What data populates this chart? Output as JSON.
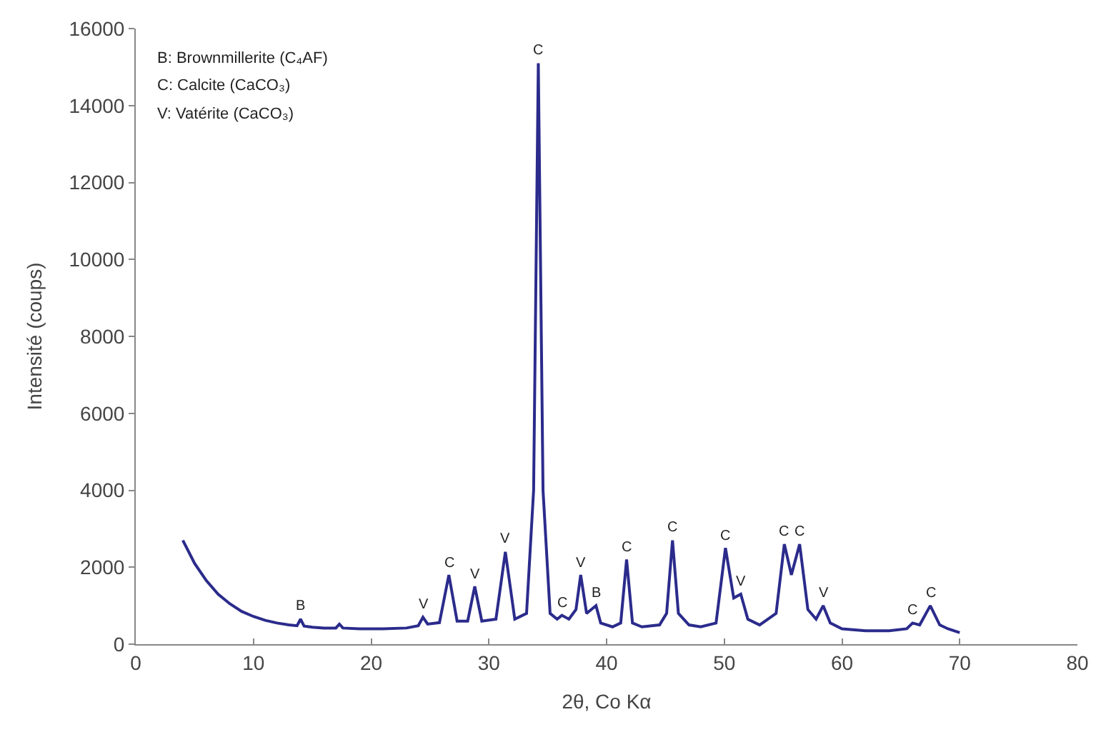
{
  "chart_data": {
    "type": "line",
    "xlabel": "2θ, Co Kα",
    "ylabel": "Intensité (coups)",
    "xlim": [
      0,
      80
    ],
    "xticks": [
      0,
      10,
      20,
      30,
      40,
      50,
      60,
      70,
      80
    ],
    "ylim": [
      0,
      16000
    ],
    "yticks": [
      0,
      2000,
      4000,
      6000,
      8000,
      10000,
      12000,
      14000,
      16000
    ],
    "legend": false,
    "marker": "none",
    "line_style": "solid",
    "series": [
      {
        "color": "#2b2b8c",
        "x": [
          4,
          5,
          6,
          7,
          8,
          9,
          10,
          11,
          12,
          13,
          13.7,
          14,
          14.3,
          15,
          16,
          17,
          17.3,
          17.6,
          19,
          21,
          23,
          24,
          24.4,
          24.8,
          25.8,
          26.6,
          27.3,
          28.2,
          28.8,
          29.4,
          30.6,
          31.4,
          32.2,
          33.2,
          33.8,
          34.2,
          34.6,
          35.2,
          35.8,
          36.2,
          36.8,
          37.4,
          37.8,
          38.3,
          38.7,
          39.1,
          39.5,
          40.5,
          41.2,
          41.7,
          42.2,
          43,
          44.5,
          45.1,
          45.6,
          46.1,
          47,
          48,
          49.3,
          50.1,
          50.8,
          51.4,
          52,
          53,
          54.4,
          55.1,
          55.7,
          56.4,
          57.1,
          57.8,
          58.4,
          59,
          60,
          62,
          64,
          65.5,
          66,
          66.6,
          67.5,
          68.3,
          69,
          70
        ],
        "values": [
          2700,
          2100,
          1650,
          1300,
          1050,
          850,
          720,
          620,
          550,
          500,
          480,
          650,
          470,
          440,
          420,
          420,
          520,
          420,
          400,
          400,
          420,
          480,
          700,
          520,
          560,
          1800,
          600,
          600,
          1500,
          600,
          650,
          2400,
          650,
          800,
          4000,
          15100,
          4000,
          800,
          650,
          750,
          650,
          900,
          1800,
          800,
          900,
          1000,
          550,
          450,
          550,
          2200,
          550,
          450,
          500,
          800,
          2700,
          800,
          500,
          450,
          550,
          2500,
          1200,
          1300,
          650,
          500,
          800,
          2600,
          1800,
          2600,
          900,
          650,
          1000,
          550,
          400,
          350,
          350,
          400,
          550,
          500,
          1000,
          500,
          400,
          300
        ]
      }
    ],
    "annotations": [
      "B: Brownmillerite (C₄AF)",
      "C: Calcite (CaCO₃)",
      "V: Vatérite (CaCO₃)",
      {
        "text": "B",
        "x": 14,
        "y": 650
      },
      {
        "text": "V",
        "x": 24.4,
        "y": 700
      },
      {
        "text": "C",
        "x": 26.6,
        "y": 1800
      },
      {
        "text": "V",
        "x": 28.8,
        "y": 1500
      },
      {
        "text": "V",
        "x": 31.4,
        "y": 2400
      },
      {
        "text": "C",
        "x": 34.2,
        "y": 15100
      },
      {
        "text": "C",
        "x": 36.2,
        "y": 750
      },
      {
        "text": "V",
        "x": 37.8,
        "y": 1800
      },
      {
        "text": "B",
        "x": 39.1,
        "y": 1000
      },
      {
        "text": "C",
        "x": 41.7,
        "y": 2200
      },
      {
        "text": "C",
        "x": 45.6,
        "y": 2700
      },
      {
        "text": "C",
        "x": 50.1,
        "y": 2500
      },
      {
        "text": "V",
        "x": 51.4,
        "y": 1300
      },
      {
        "text": "C",
        "x": 55.1,
        "y": 2600
      },
      {
        "text": "C",
        "x": 56.4,
        "y": 2600
      },
      {
        "text": "V",
        "x": 58.4,
        "y": 1000
      },
      {
        "text": "C",
        "x": 66,
        "y": 550
      },
      {
        "text": "C",
        "x": 67.5,
        "y": 1000
      }
    ]
  }
}
